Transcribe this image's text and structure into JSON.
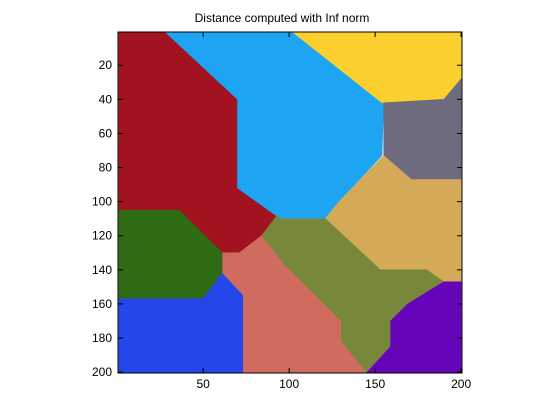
{
  "chart_data": {
    "type": "heatmap",
    "title": "Distance computed with Inf norm",
    "xlabel": "",
    "ylabel": "",
    "xlim": [
      0.5,
      200.5
    ],
    "ylim": [
      0.5,
      200.5
    ],
    "y_reversed": true,
    "grid": false,
    "x_ticks": [
      50,
      100,
      150,
      200
    ],
    "y_ticks": [
      20,
      40,
      60,
      80,
      100,
      120,
      140,
      160,
      180,
      200
    ],
    "regions": [
      {
        "name": "region-dark-red",
        "color": "#A3121F",
        "polygon": [
          [
            1,
            0.5
          ],
          [
            28,
            0.5
          ],
          [
            70,
            40
          ],
          [
            70,
            92
          ],
          [
            93,
            108
          ],
          [
            84,
            120
          ],
          [
            71,
            130
          ],
          [
            61,
            130
          ],
          [
            36,
            105
          ],
          [
            1,
            105
          ]
        ]
      },
      {
        "name": "region-light-blue",
        "color": "#1DA4F2",
        "polygon": [
          [
            28,
            0.5
          ],
          [
            102,
            0.5
          ],
          [
            155,
            42
          ],
          [
            154,
            73
          ],
          [
            129,
            100
          ],
          [
            121,
            110
          ],
          [
            95,
            110
          ],
          [
            70,
            92
          ],
          [
            70,
            40
          ]
        ]
      },
      {
        "name": "region-yellow",
        "color": "#FBCF2E",
        "polygon": [
          [
            102,
            0.5
          ],
          [
            200,
            0.5
          ],
          [
            200,
            28
          ],
          [
            190,
            40
          ],
          [
            154,
            42
          ]
        ]
      },
      {
        "name": "region-slate-gray",
        "color": "#6F6B7E",
        "polygon": [
          [
            155,
            42
          ],
          [
            190,
            40
          ],
          [
            200,
            28
          ],
          [
            200,
            87
          ],
          [
            171,
            87
          ],
          [
            155,
            73
          ]
        ]
      },
      {
        "name": "region-tan",
        "color": "#D4A958",
        "polygon": [
          [
            155,
            73
          ],
          [
            171,
            87
          ],
          [
            200,
            87
          ],
          [
            200,
            147
          ],
          [
            190,
            147
          ],
          [
            180,
            140
          ],
          [
            153,
            140
          ],
          [
            121,
            110
          ],
          [
            129,
            100
          ]
        ]
      },
      {
        "name": "region-olive",
        "color": "#77883A",
        "polygon": [
          [
            95,
            110
          ],
          [
            121,
            110
          ],
          [
            153,
            140
          ],
          [
            180,
            140
          ],
          [
            190,
            147
          ],
          [
            169,
            160
          ],
          [
            159,
            170
          ],
          [
            159,
            185
          ],
          [
            145,
            200.5
          ],
          [
            130,
            182
          ],
          [
            130,
            170
          ],
          [
            97,
            137
          ],
          [
            84,
            120
          ],
          [
            93,
            108
          ]
        ]
      },
      {
        "name": "region-salmon",
        "color": "#D06B60",
        "polygon": [
          [
            61,
            130
          ],
          [
            71,
            130
          ],
          [
            84,
            120
          ],
          [
            97,
            137
          ],
          [
            130,
            170
          ],
          [
            130,
            182
          ],
          [
            145,
            200.5
          ],
          [
            73,
            200.5
          ],
          [
            73,
            155
          ],
          [
            61,
            142
          ]
        ]
      },
      {
        "name": "region-green",
        "color": "#2E6B12",
        "polygon": [
          [
            1,
            105
          ],
          [
            36,
            105
          ],
          [
            61,
            130
          ],
          [
            61,
            142
          ],
          [
            50,
            157
          ],
          [
            1,
            157
          ]
        ]
      },
      {
        "name": "region-blue",
        "color": "#2446EA",
        "polygon": [
          [
            1,
            157
          ],
          [
            50,
            157
          ],
          [
            61,
            142
          ],
          [
            73,
            155
          ],
          [
            73,
            200.5
          ],
          [
            1,
            200.5
          ]
        ]
      },
      {
        "name": "region-purple",
        "color": "#6504B9",
        "polygon": [
          [
            190,
            147
          ],
          [
            200,
            147
          ],
          [
            200,
            200.5
          ],
          [
            145,
            200.5
          ],
          [
            159,
            185
          ],
          [
            159,
            170
          ],
          [
            169,
            160
          ]
        ]
      }
    ]
  }
}
